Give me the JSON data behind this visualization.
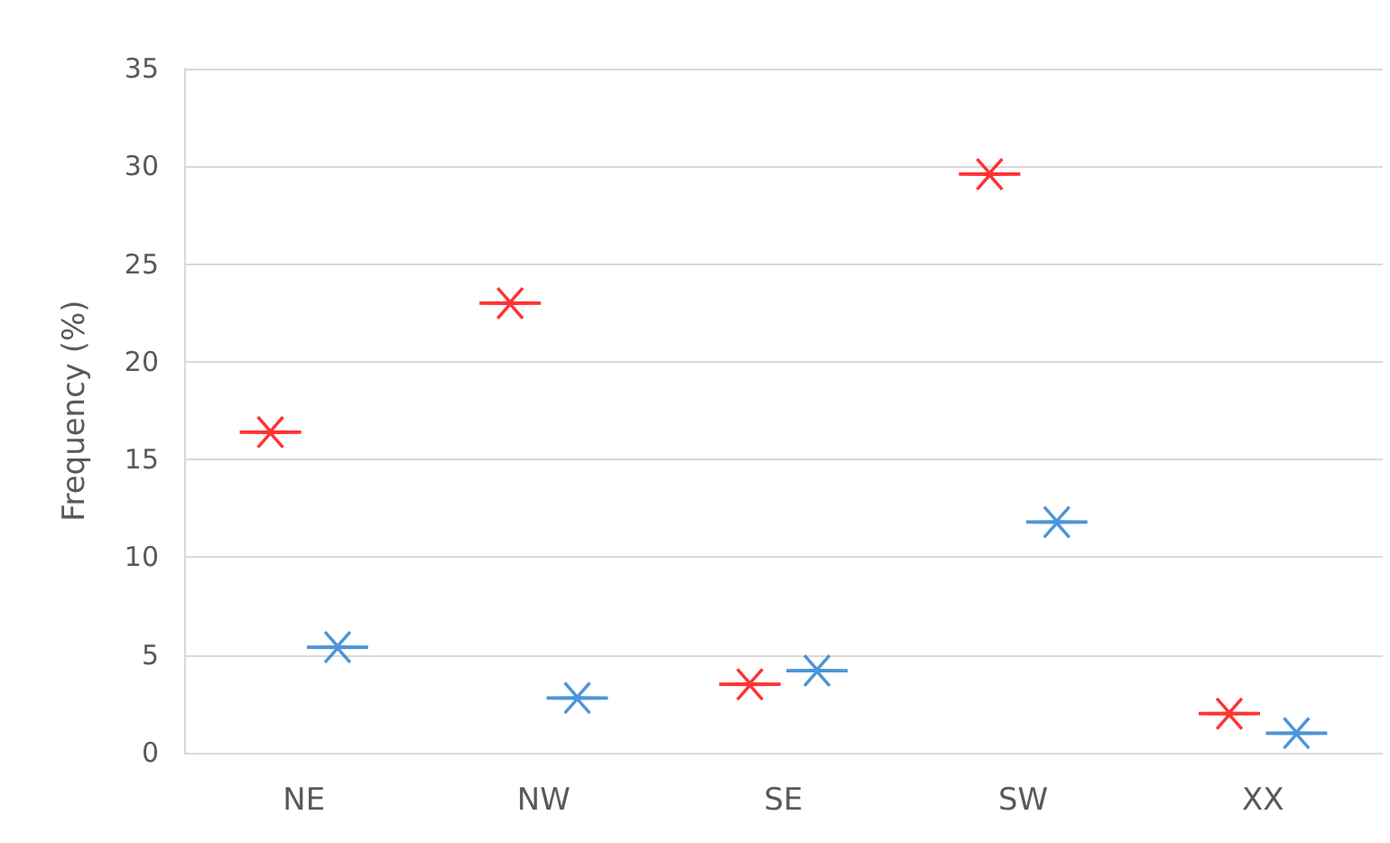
{
  "chart_data": {
    "type": "scatter",
    "ylabel": "Frequency (%)",
    "categories": [
      "NE",
      "NW",
      "SE",
      "SW",
      "XX"
    ],
    "series": [
      {
        "color": "#ff0000",
        "values": [
          16.4,
          23.0,
          3.5,
          29.6,
          2.0
        ]
      },
      {
        "color": "#1f7bd0",
        "values": [
          5.4,
          2.8,
          4.2,
          11.8,
          1.0
        ]
      }
    ],
    "ylim": [
      0,
      35
    ],
    "yticks": [
      0,
      5,
      10,
      15,
      20,
      25,
      30,
      35
    ],
    "grid": "y",
    "marker": "star"
  }
}
